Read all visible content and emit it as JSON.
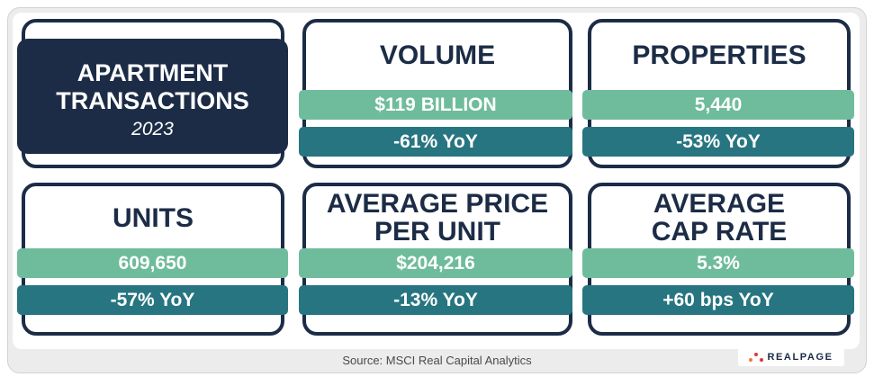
{
  "header_card": {
    "title_line1": "APARTMENT",
    "title_line2": "TRANSACTIONS",
    "year": "2023"
  },
  "metrics": [
    {
      "title_lines": [
        "VOLUME"
      ],
      "value": "$119 BILLION",
      "change": "-61% YoY"
    },
    {
      "title_lines": [
        "PROPERTIES"
      ],
      "value": "5,440",
      "change": "-53% YoY"
    },
    {
      "title_lines": [
        "UNITS"
      ],
      "value": "609,650",
      "change": "-57% YoY"
    },
    {
      "title_lines": [
        "AVERAGE PRICE",
        "PER UNIT"
      ],
      "value": "$204,216",
      "change": "-13% YoY"
    },
    {
      "title_lines": [
        "AVERAGE",
        "CAP RATE"
      ],
      "value": "5.3%",
      "change": "+60 bps YoY"
    }
  ],
  "footer": {
    "source": "Source: MSCI Real Capital Analytics",
    "logo_text": "REALPAGE"
  },
  "colors": {
    "navy": "#1c2c46",
    "green": "#6fbc9c",
    "teal": "#277580",
    "logo_orange": "#f07a3a",
    "logo_red": "#e0363a"
  }
}
